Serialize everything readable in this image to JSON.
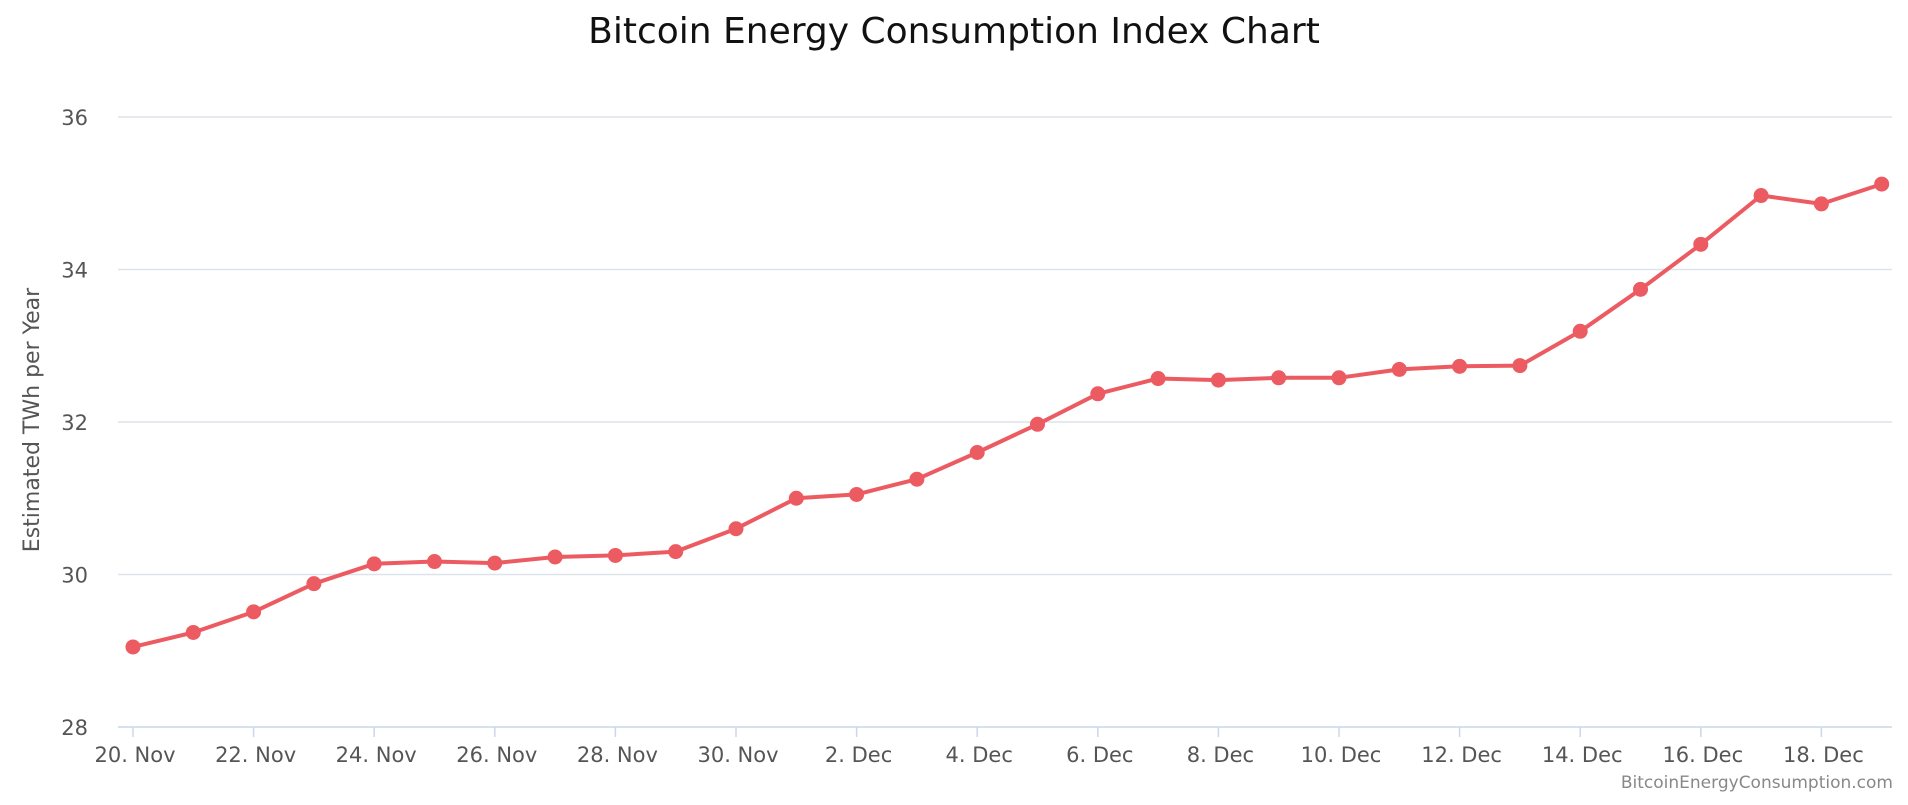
{
  "chart_data": {
    "type": "line",
    "title": "Bitcoin Energy Consumption Index Chart",
    "xlabel": "",
    "ylabel": "Estimated TWh per Year",
    "credit": "BitcoinEnergyConsumption.com",
    "ylim": [
      28,
      36
    ],
    "y_ticks": [
      28,
      30,
      32,
      34,
      36
    ],
    "x_tick_labels": [
      "20. Nov",
      "22. Nov",
      "24. Nov",
      "26. Nov",
      "28. Nov",
      "30. Nov",
      "2. Dec",
      "4. Dec",
      "6. Dec",
      "8. Dec",
      "10. Dec",
      "12. Dec",
      "14. Dec",
      "16. Dec",
      "18. Dec"
    ],
    "grid": true,
    "legend": "none",
    "color": "#ec5b61",
    "x": [
      "20. Nov",
      "21. Nov",
      "22. Nov",
      "23. Nov",
      "24. Nov",
      "25. Nov",
      "26. Nov",
      "27. Nov",
      "28. Nov",
      "29. Nov",
      "30. Nov",
      "1. Dec",
      "2. Dec",
      "3. Dec",
      "4. Dec",
      "5. Dec",
      "6. Dec",
      "7. Dec",
      "8. Dec",
      "9. Dec",
      "10. Dec",
      "11. Dec",
      "12. Dec",
      "13. Dec",
      "14. Dec",
      "15. Dec",
      "16. Dec",
      "17. Dec",
      "18. Dec",
      "19. Dec"
    ],
    "series": [
      {
        "values": [
          29.05,
          29.24,
          29.51,
          29.88,
          30.14,
          30.17,
          30.15,
          30.23,
          30.25,
          30.3,
          30.6,
          31.0,
          31.05,
          31.25,
          31.6,
          31.97,
          32.37,
          32.57,
          32.55,
          32.58,
          32.58,
          32.69,
          32.73,
          32.74,
          33.19,
          33.74,
          34.33,
          34.97,
          34.86,
          35.12
        ]
      }
    ]
  }
}
